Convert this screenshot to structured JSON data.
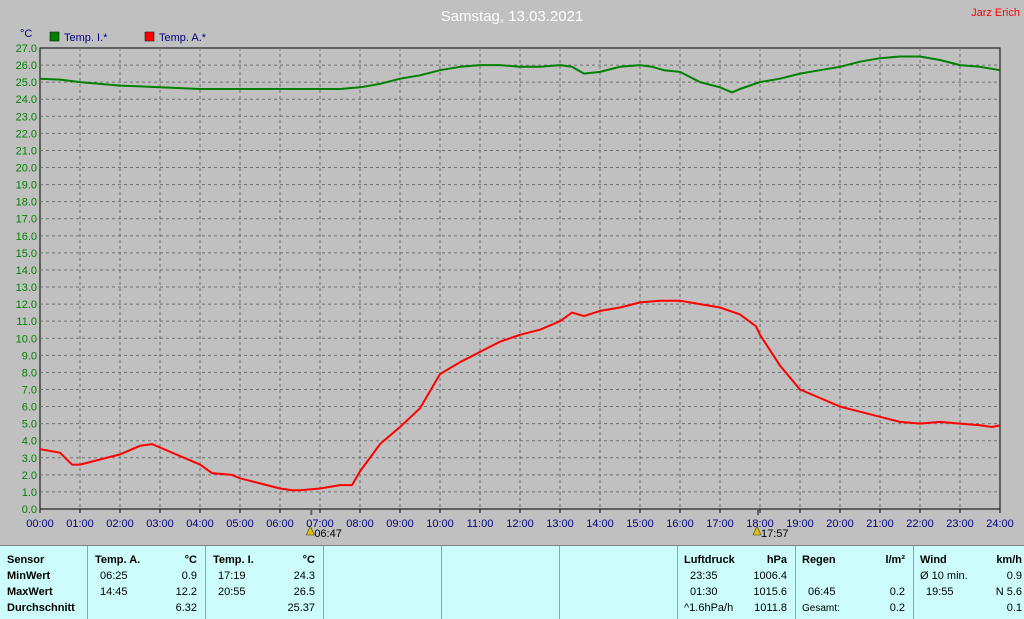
{
  "header": {
    "title": "Samstag, 13.03.2021",
    "author": "Jarz Erich"
  },
  "chart_data": {
    "type": "line",
    "ylabel": "°C",
    "ylim": [
      0,
      27
    ],
    "ytick_step": 1,
    "grid": true,
    "legend_position": "top-left",
    "x_ticks": [
      "00:00",
      "01:00",
      "02:00",
      "03:00",
      "04:00",
      "05:00",
      "06:00",
      "07:00",
      "08:00",
      "09:00",
      "10:00",
      "11:00",
      "12:00",
      "13:00",
      "14:00",
      "15:00",
      "16:00",
      "17:00",
      "18:00",
      "19:00",
      "20:00",
      "21:00",
      "22:00",
      "23:00",
      "24:00"
    ],
    "xlim_hours": [
      0,
      24
    ],
    "series": [
      {
        "name": "Temp. I.*",
        "color": "#008000",
        "x": [
          0,
          0.5,
          1,
          1.5,
          2,
          2.5,
          3,
          3.5,
          4,
          4.5,
          5,
          5.5,
          6,
          6.5,
          7,
          7.5,
          8,
          8.5,
          9,
          9.5,
          10,
          10.5,
          11,
          11.5,
          12,
          12.5,
          13,
          13.3,
          13.6,
          14,
          14.5,
          15,
          15.3,
          15.6,
          16,
          16.5,
          17,
          17.3,
          17.5,
          18,
          18.5,
          19,
          19.5,
          20,
          20.5,
          21,
          21.5,
          22,
          22.5,
          23,
          23.5,
          24
        ],
        "y": [
          25.2,
          25.15,
          25.0,
          24.9,
          24.8,
          24.75,
          24.7,
          24.65,
          24.6,
          24.6,
          24.6,
          24.6,
          24.6,
          24.6,
          24.6,
          24.6,
          24.7,
          24.9,
          25.2,
          25.4,
          25.7,
          25.9,
          26.0,
          26.0,
          25.9,
          25.9,
          26.0,
          25.9,
          25.5,
          25.6,
          25.9,
          26.0,
          25.9,
          25.7,
          25.6,
          25.0,
          24.7,
          24.4,
          24.6,
          25.0,
          25.2,
          25.5,
          25.7,
          25.9,
          26.2,
          26.4,
          26.5,
          26.5,
          26.3,
          26.0,
          25.9,
          25.7
        ]
      },
      {
        "name": "Temp. A.*",
        "color": "#ff0000",
        "x": [
          0,
          0.5,
          0.8,
          1,
          1.5,
          2,
          2.5,
          2.8,
          3,
          3.5,
          4,
          4.3,
          4.8,
          5,
          5.5,
          6,
          6.3,
          6.5,
          7,
          7.5,
          7.8,
          8,
          8.5,
          9,
          9.5,
          10,
          10.5,
          11,
          11.5,
          12,
          12.5,
          13,
          13.3,
          13.6,
          14,
          14.5,
          15,
          15.5,
          16,
          16.5,
          17,
          17.5,
          17.9,
          18,
          18.5,
          19,
          19.5,
          20,
          20.5,
          21,
          21.5,
          22,
          22.5,
          23,
          23.5,
          23.8,
          24
        ],
        "y": [
          3.5,
          3.3,
          2.6,
          2.6,
          2.9,
          3.2,
          3.7,
          3.8,
          3.6,
          3.1,
          2.6,
          2.1,
          2.0,
          1.8,
          1.5,
          1.2,
          1.1,
          1.1,
          1.2,
          1.4,
          1.4,
          2.2,
          3.8,
          4.8,
          5.9,
          7.9,
          8.6,
          9.2,
          9.8,
          10.2,
          10.5,
          11.0,
          11.5,
          11.3,
          11.6,
          11.8,
          12.1,
          12.2,
          12.2,
          12.0,
          11.8,
          11.4,
          10.7,
          10.2,
          8.4,
          7.0,
          6.5,
          6.0,
          5.7,
          5.4,
          5.1,
          5.0,
          5.1,
          5.0,
          4.9,
          4.8,
          4.9
        ]
      }
    ],
    "annotations": [
      {
        "label": "06:47",
        "x_hours": 6.783,
        "icon": "sunrise-icon"
      },
      {
        "label": "17:57",
        "x_hours": 17.95,
        "icon": "sunset-icon"
      }
    ]
  },
  "stats": {
    "row_labels": {
      "sensor": "Sensor",
      "min": "MinWert",
      "max": "MaxWert",
      "avg": "Durchschnitt"
    },
    "temp_a": {
      "name": "Temp. A.",
      "unit": "°C",
      "min_time": "06:25",
      "min_val": "0.9",
      "max_time": "14:45",
      "max_val": "12.2",
      "avg": "6.32"
    },
    "temp_i": {
      "name": "Temp. I.",
      "unit": "°C",
      "min_time": "17:19",
      "min_val": "24.3",
      "max_time": "20:55",
      "max_val": "26.5",
      "avg": "25.37"
    },
    "pressure": {
      "name": "Luftdruck",
      "unit": "hPa",
      "min_time": "23:35",
      "min_val": "1006.4",
      "max_time": "01:30",
      "max_val": "1015.6",
      "trend": "^1.6hPa/h",
      "avg": "1011.8"
    },
    "rain": {
      "name": "Regen",
      "unit": "l/m²",
      "max_time": "06:45",
      "max_val": "0.2",
      "total_label": "Gesamt:",
      "total": "0.2"
    },
    "wind": {
      "name": "Wind",
      "unit": "km/h",
      "avg_label": "Ø 10 min.",
      "avg_val": "0.9",
      "max_time": "19:55",
      "max_val": "N 5.6",
      "last": "0.1"
    }
  }
}
